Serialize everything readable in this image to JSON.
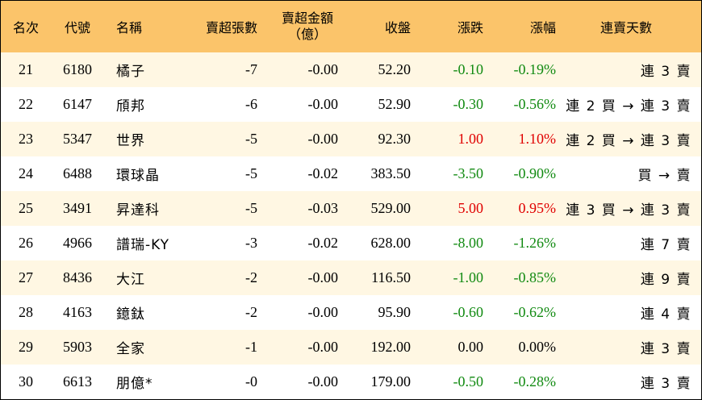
{
  "header": {
    "rank": "名次",
    "code": "代號",
    "name": "名稱",
    "sheets": "賣超張數",
    "amount_line1": "賣超金額",
    "amount_line2": "（億）",
    "close": "收盤",
    "change": "漲跌",
    "change_pct": "漲幅",
    "streak": "連賣天數"
  },
  "colors": {
    "header_bg": "#fbc46a",
    "stripe_bg": "#fff7e3",
    "up": "#e00000",
    "down": "#118a11"
  },
  "rows": [
    {
      "rank": "21",
      "code": "6180",
      "name": "橘子",
      "sheets": "-7",
      "amount": "-0.00",
      "close": "52.20",
      "change": "-0.10",
      "change_pct": "-0.19%",
      "direction": "down",
      "streak": "連 3 賣"
    },
    {
      "rank": "22",
      "code": "6147",
      "name": "頎邦",
      "sheets": "-6",
      "amount": "-0.00",
      "close": "52.90",
      "change": "-0.30",
      "change_pct": "-0.56%",
      "direction": "down",
      "streak": "連 2 買 → 連 3 賣"
    },
    {
      "rank": "23",
      "code": "5347",
      "name": "世界",
      "sheets": "-5",
      "amount": "-0.00",
      "close": "92.30",
      "change": "1.00",
      "change_pct": "1.10%",
      "direction": "up",
      "streak": "連 2 買 → 連 3 賣"
    },
    {
      "rank": "24",
      "code": "6488",
      "name": "環球晶",
      "sheets": "-5",
      "amount": "-0.02",
      "close": "383.50",
      "change": "-3.50",
      "change_pct": "-0.90%",
      "direction": "down",
      "streak": "買 → 賣"
    },
    {
      "rank": "25",
      "code": "3491",
      "name": "昇達科",
      "sheets": "-5",
      "amount": "-0.03",
      "close": "529.00",
      "change": "5.00",
      "change_pct": "0.95%",
      "direction": "up",
      "streak": "連 3 買 → 連 3 賣"
    },
    {
      "rank": "26",
      "code": "4966",
      "name": "譜瑞-KY",
      "sheets": "-3",
      "amount": "-0.02",
      "close": "628.00",
      "change": "-8.00",
      "change_pct": "-1.26%",
      "direction": "down",
      "streak": "連 7 賣"
    },
    {
      "rank": "27",
      "code": "8436",
      "name": "大江",
      "sheets": "-2",
      "amount": "-0.00",
      "close": "116.50",
      "change": "-1.00",
      "change_pct": "-0.85%",
      "direction": "down",
      "streak": "連 9 賣"
    },
    {
      "rank": "28",
      "code": "4163",
      "name": "鐿鈦",
      "sheets": "-2",
      "amount": "-0.00",
      "close": "95.90",
      "change": "-0.60",
      "change_pct": "-0.62%",
      "direction": "down",
      "streak": "連 4 賣"
    },
    {
      "rank": "29",
      "code": "5903",
      "name": "全家",
      "sheets": "-1",
      "amount": "-0.00",
      "close": "192.00",
      "change": "0.00",
      "change_pct": "0.00%",
      "direction": "flat",
      "streak": "連 3 賣"
    },
    {
      "rank": "30",
      "code": "6613",
      "name": "朋億*",
      "sheets": "-0",
      "amount": "-0.00",
      "close": "179.00",
      "change": "-0.50",
      "change_pct": "-0.28%",
      "direction": "down",
      "streak": "連 3 賣"
    }
  ]
}
